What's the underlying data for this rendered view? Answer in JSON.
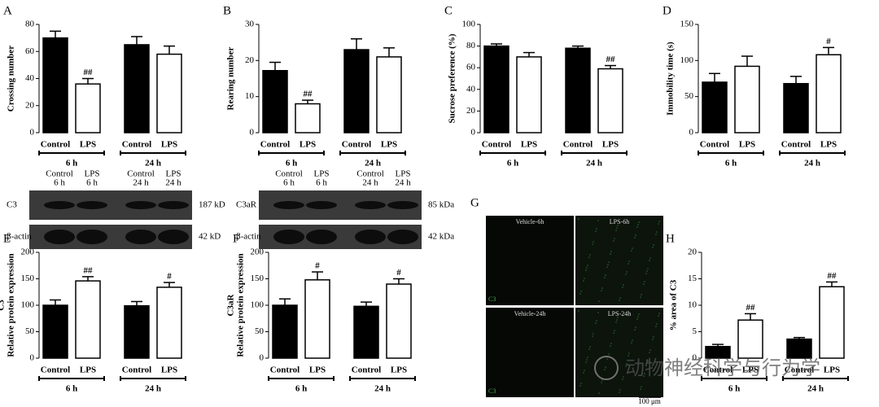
{
  "chart_data": [
    {
      "type": "bar",
      "panel": "A",
      "ylabel": [
        "Crossing number"
      ],
      "categories": [
        "Control",
        "LPS",
        "Control",
        "LPS"
      ],
      "groups": [
        "6 h",
        "24 h"
      ],
      "values": [
        70,
        36,
        65,
        58
      ],
      "errors": [
        5,
        4,
        6,
        6
      ],
      "annotations": [
        null,
        "##",
        null,
        null
      ],
      "colors": [
        "#000000",
        "#ffffff",
        "#000000",
        "#ffffff"
      ],
      "ylim": [
        0,
        80
      ],
      "yticks": [
        0,
        20,
        40,
        60,
        80
      ]
    },
    {
      "type": "bar",
      "panel": "B",
      "ylabel": [
        "Rearing number"
      ],
      "categories": [
        "Control",
        "LPS",
        "Control",
        "LPS"
      ],
      "groups": [
        "6 h",
        "24 h"
      ],
      "values": [
        17.2,
        8,
        23,
        21
      ],
      "errors": [
        2.3,
        1,
        3,
        2.5
      ],
      "annotations": [
        null,
        "##",
        null,
        null
      ],
      "colors": [
        "#000000",
        "#ffffff",
        "#000000",
        "#ffffff"
      ],
      "ylim": [
        0,
        30
      ],
      "yticks": [
        0,
        10,
        20,
        30
      ]
    },
    {
      "type": "bar",
      "panel": "C",
      "ylabel": [
        "Sucrose preference (%)"
      ],
      "categories": [
        "Control",
        "LPS",
        "Control",
        "LPS"
      ],
      "groups": [
        "6 h",
        "24 h"
      ],
      "values": [
        80,
        70,
        78,
        59
      ],
      "errors": [
        2,
        4,
        2,
        3
      ],
      "annotations": [
        null,
        null,
        null,
        "##"
      ],
      "colors": [
        "#000000",
        "#ffffff",
        "#000000",
        "#ffffff"
      ],
      "ylim": [
        0,
        100
      ],
      "yticks": [
        0,
        20,
        40,
        60,
        80,
        100
      ]
    },
    {
      "type": "bar",
      "panel": "D",
      "ylabel": [
        "Immobility time (s)"
      ],
      "categories": [
        "Control",
        "LPS",
        "Control",
        "LPS"
      ],
      "groups": [
        "6 h",
        "24 h"
      ],
      "values": [
        70,
        92,
        68,
        108
      ],
      "errors": [
        12,
        14,
        10,
        10
      ],
      "annotations": [
        null,
        null,
        null,
        "#"
      ],
      "colors": [
        "#000000",
        "#ffffff",
        "#000000",
        "#ffffff"
      ],
      "ylim": [
        0,
        150
      ],
      "yticks": [
        0,
        50,
        100,
        150
      ]
    },
    {
      "type": "bar",
      "panel": "E",
      "ylabel": [
        "C3",
        "Relative protein expression"
      ],
      "categories": [
        "Control",
        "LPS",
        "Control",
        "LPS"
      ],
      "groups": [
        "6 h",
        "24 h"
      ],
      "values": [
        100,
        146,
        99,
        134
      ],
      "errors": [
        10,
        8,
        8,
        9
      ],
      "annotations": [
        null,
        "##",
        null,
        "#"
      ],
      "colors": [
        "#000000",
        "#ffffff",
        "#000000",
        "#ffffff"
      ],
      "ylim": [
        0,
        200
      ],
      "yticks": [
        0,
        50,
        100,
        150,
        200
      ],
      "blot": {
        "columns": [
          [
            "Control",
            "6 h"
          ],
          [
            "LPS",
            "6 h"
          ],
          [
            "Control",
            "24 h"
          ],
          [
            "LPS",
            "24 h"
          ]
        ],
        "rows": [
          {
            "label": "C3",
            "size": "187 kD"
          },
          {
            "label": "β-actin",
            "size": "42 kD"
          }
        ]
      }
    },
    {
      "type": "bar",
      "panel": "F",
      "ylabel": [
        "C3aR",
        "Relative protein expression"
      ],
      "categories": [
        "Control",
        "LPS",
        "Control",
        "LPS"
      ],
      "groups": [
        "6 h",
        "24 h"
      ],
      "values": [
        100,
        148,
        98,
        140
      ],
      "errors": [
        12,
        15,
        8,
        10
      ],
      "annotations": [
        null,
        "#",
        null,
        "#"
      ],
      "colors": [
        "#000000",
        "#ffffff",
        "#000000",
        "#ffffff"
      ],
      "ylim": [
        0,
        200
      ],
      "yticks": [
        0,
        50,
        100,
        150,
        200
      ],
      "blot": {
        "columns": [
          [
            "Control",
            "6 h"
          ],
          [
            "LPS",
            "6 h"
          ],
          [
            "Control",
            "24 h"
          ],
          [
            "LPS",
            "24 h"
          ]
        ],
        "rows": [
          {
            "label": "C3aR",
            "size": "85 kDa"
          },
          {
            "label": "β-actin",
            "size": "42 kDa"
          }
        ]
      }
    },
    {
      "type": "bar",
      "panel": "H",
      "ylabel": [
        "% area of C3"
      ],
      "categories": [
        "Control",
        "LPS",
        "Control",
        "LPS"
      ],
      "groups": [
        "6 h",
        "24 h"
      ],
      "values": [
        2.2,
        7.2,
        3.6,
        13.5
      ],
      "errors": [
        0.4,
        1.2,
        0.3,
        0.9
      ],
      "annotations": [
        null,
        "##",
        null,
        "##"
      ],
      "colors": [
        "#000000",
        "#ffffff",
        "#000000",
        "#ffffff"
      ],
      "ylim": [
        0,
        20
      ],
      "yticks": [
        0,
        5,
        10,
        15,
        20
      ]
    }
  ],
  "images": {
    "panel": "G",
    "tiles": [
      "Vehicle-6h",
      "LPS-6h",
      "Vehicle-24h",
      "LPS-24h"
    ],
    "channel": "C3",
    "scale": "100 μm"
  },
  "watermark": "动物神经科学与行为学"
}
